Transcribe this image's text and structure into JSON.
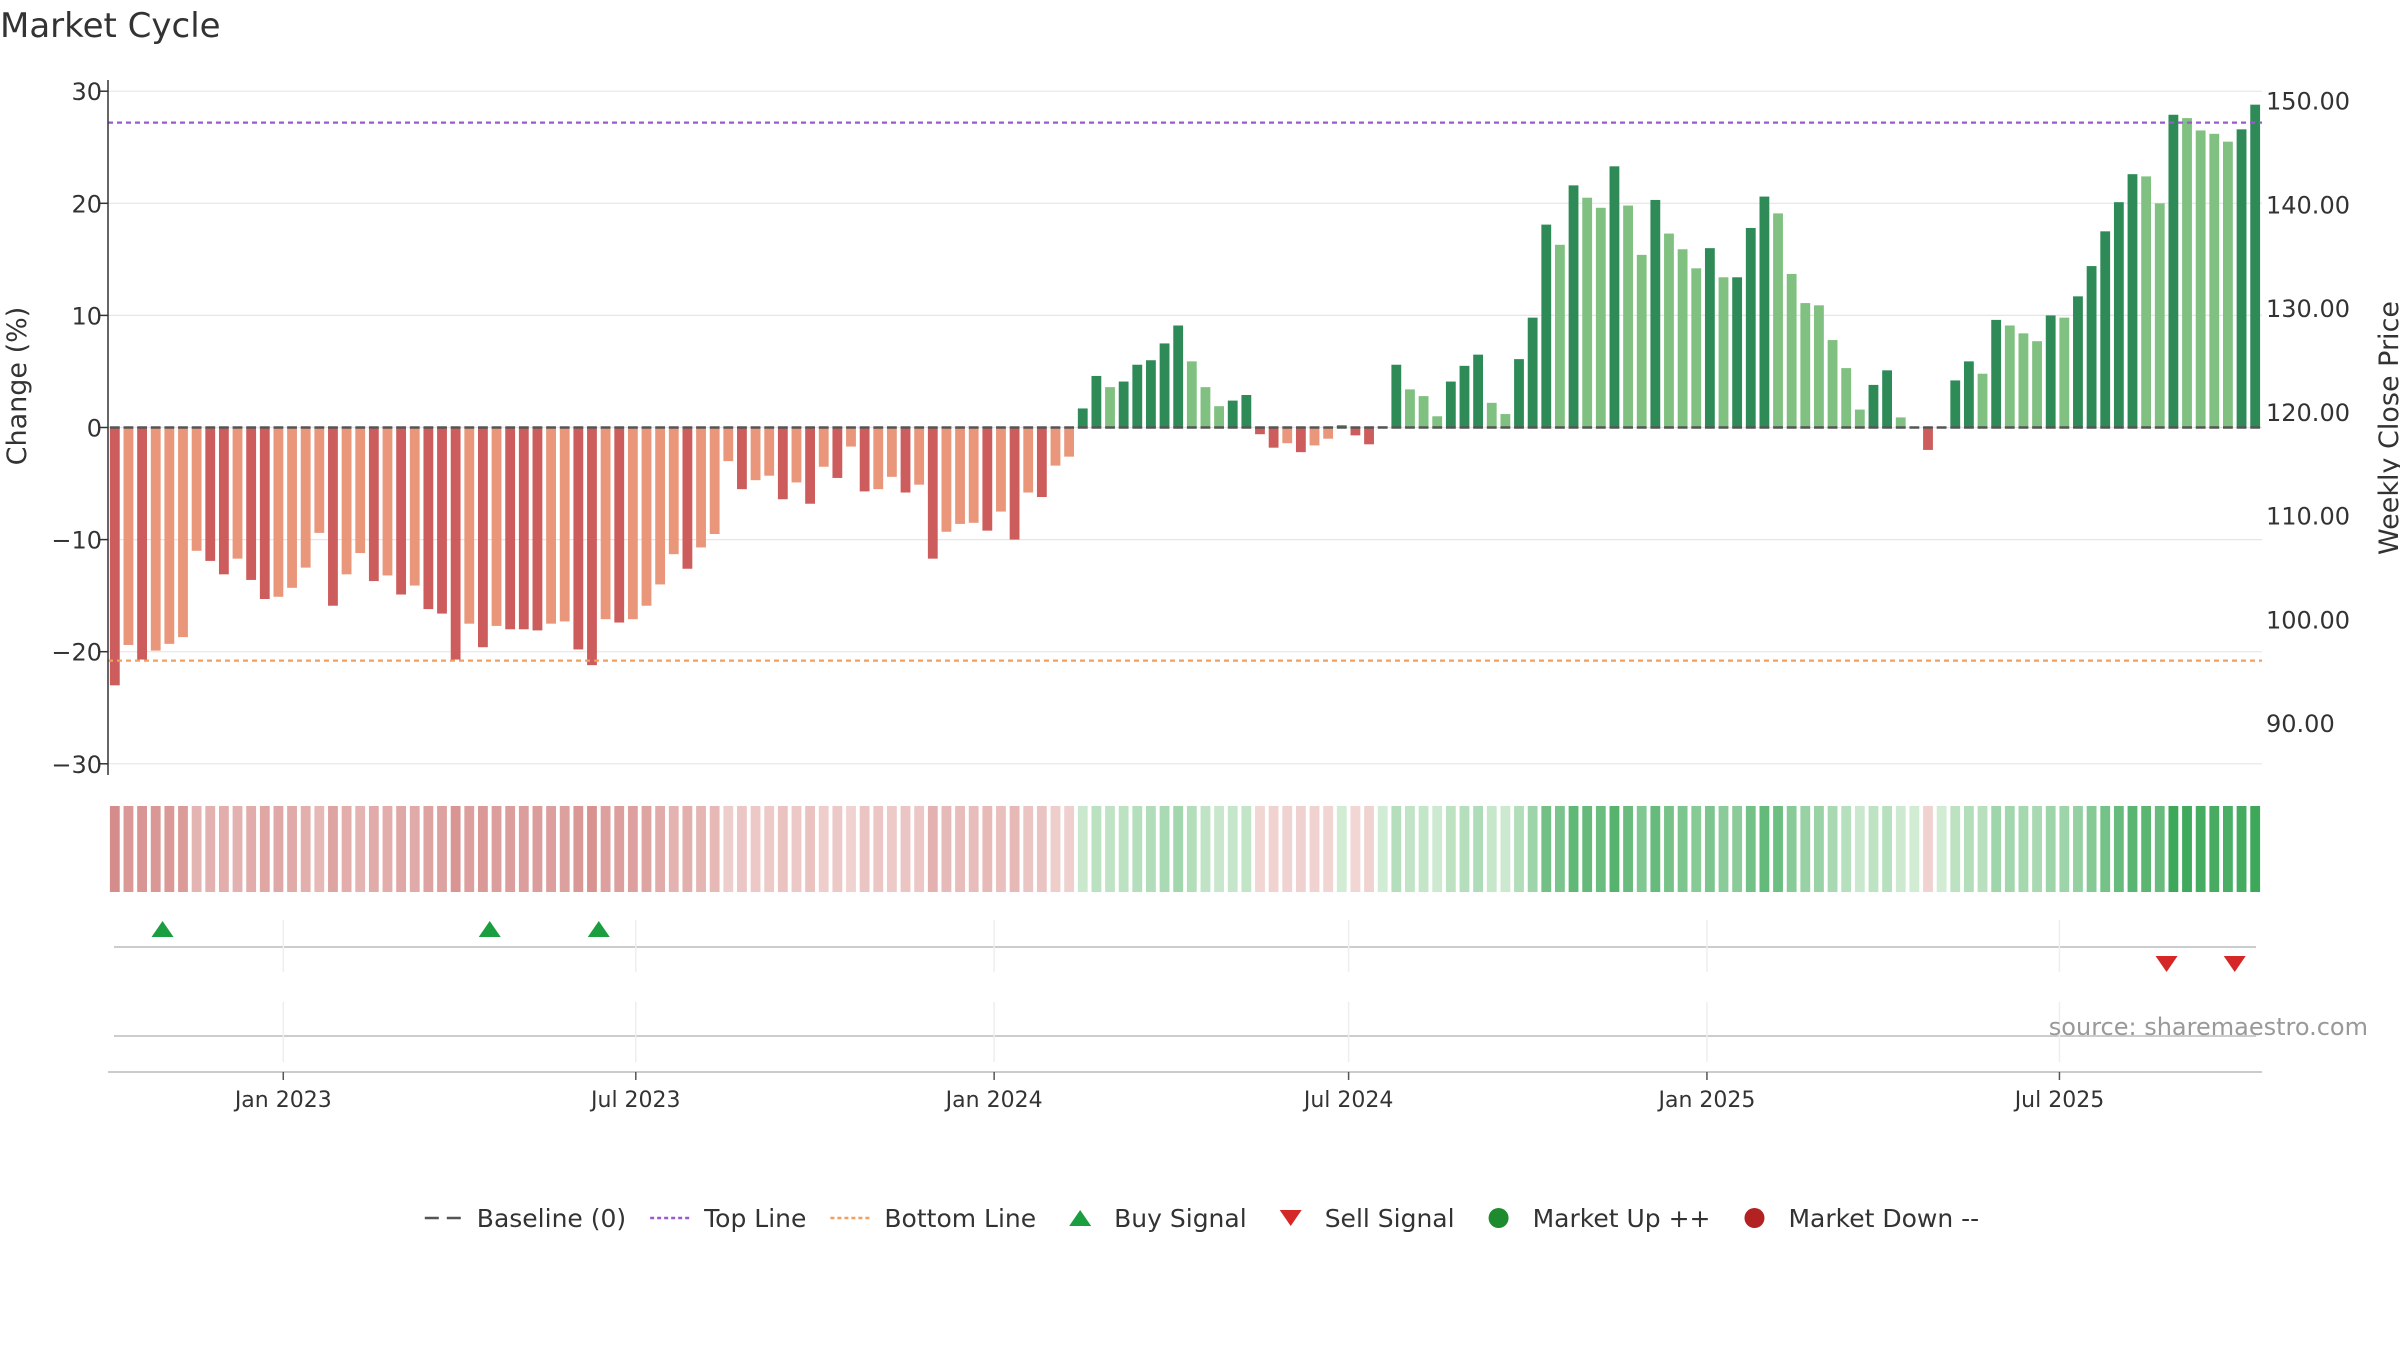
{
  "chart_data": {
    "type": "bar",
    "title": "Market Cycle",
    "ylabel": "Change (%)",
    "y2label": "Weekly Close Price",
    "ylim": [
      -31,
      31
    ],
    "y2lim": [
      85,
      152
    ],
    "yticks": [
      30,
      20,
      10,
      0,
      -10,
      -20,
      -30
    ],
    "ytick_labels": [
      "30",
      "20",
      "10",
      "0",
      "−10",
      "−20",
      "−30"
    ],
    "y2ticks": [
      150,
      140,
      130,
      120,
      110,
      100,
      90
    ],
    "y2tick_labels": [
      "150.00",
      "140.00",
      "130.00",
      "120.00",
      "110.00",
      "100.00",
      "90.00"
    ],
    "x_start": "2022-10-03",
    "x_end": "2025-10-13",
    "xticks": [
      "2023-01-01",
      "2023-07-01",
      "2024-01-01",
      "2024-07-01",
      "2025-01-01",
      "2025-07-01"
    ],
    "xtick_labels": [
      "Jan 2023",
      "Jul 2023",
      "Jan 2024",
      "Jul 2024",
      "Jan 2025",
      "Jul 2025"
    ],
    "top_line": 27.2,
    "bottom_line": -20.8,
    "baseline": 0,
    "values": [
      -23.0,
      -19.4,
      -20.7,
      -19.9,
      -19.3,
      -18.7,
      -11.0,
      -11.9,
      -13.1,
      -11.7,
      -13.6,
      -15.3,
      -15.1,
      -14.3,
      -12.5,
      -9.4,
      -15.9,
      -13.1,
      -11.2,
      -13.7,
      -13.2,
      -14.9,
      -14.1,
      -16.2,
      -16.6,
      -20.7,
      -17.5,
      -19.6,
      -17.7,
      -18.0,
      -18.0,
      -18.1,
      -17.5,
      -17.3,
      -19.8,
      -21.2,
      -17.1,
      -17.4,
      -17.1,
      -15.9,
      -14.0,
      -11.3,
      -12.6,
      -10.7,
      -9.5,
      -3.0,
      -5.5,
      -4.7,
      -4.3,
      -6.4,
      -4.9,
      -6.8,
      -3.5,
      -4.5,
      -1.7,
      -5.7,
      -5.5,
      -4.4,
      -5.8,
      -5.1,
      -11.7,
      -9.3,
      -8.6,
      -8.5,
      -9.2,
      -7.5,
      -10.0,
      -5.8,
      -6.2,
      -3.4,
      -2.6,
      1.7,
      4.6,
      3.6,
      4.1,
      5.6,
      6.0,
      7.5,
      9.1,
      5.9,
      3.6,
      1.9,
      2.4,
      2.9,
      -0.6,
      -1.8,
      -1.4,
      -2.2,
      -1.6,
      -1.0,
      0.2,
      -0.7,
      -1.5,
      0.1,
      5.6,
      3.4,
      2.8,
      1.0,
      4.1,
      5.5,
      6.5,
      2.2,
      1.2,
      6.1,
      9.8,
      18.1,
      16.3,
      21.6,
      20.5,
      19.6,
      23.3,
      19.8,
      15.4,
      20.3,
      17.3,
      15.9,
      14.2,
      16.0,
      13.4,
      13.4,
      17.8,
      20.6,
      19.1,
      13.7,
      11.1,
      10.9,
      7.8,
      5.3,
      1.6,
      3.8,
      5.1,
      0.9,
      0.0,
      -2.0,
      0.0,
      4.2,
      5.9,
      4.8,
      9.6,
      9.1,
      8.4,
      7.7,
      10.0,
      9.8,
      11.7,
      14.4,
      17.5,
      20.1,
      22.6,
      22.4,
      20.0,
      27.9,
      27.6,
      26.5,
      26.2,
      25.5,
      26.6,
      28.8
    ],
    "weekly_close_price": [],
    "buy_signals": [
      "2022-10-31",
      "2023-04-17",
      "2023-06-12"
    ],
    "sell_signals": [
      "2025-08-25",
      "2025-09-29"
    ],
    "market_up_events": [],
    "market_down_events": [],
    "colors": {
      "up_strong": "#2e8b57",
      "up_light": "#80c080",
      "down_strong": "#cd5c5c",
      "down_light": "#e9967a",
      "top_line": "#9b59d0",
      "bottom_line": "#f0a060",
      "baseline": "#555555",
      "buy": "#1a9e3f",
      "sell": "#d62728",
      "market_up": "#1e8c2e",
      "market_down": "#b22222",
      "grid": "#e6e6e6",
      "text": "#333333"
    },
    "legend_position": "bottom-center",
    "legend": [
      {
        "label": "Baseline (0)",
        "marker": "dash",
        "color": "#555555"
      },
      {
        "label": "Top Line",
        "marker": "dotted",
        "color": "#9b59d0"
      },
      {
        "label": "Bottom Line",
        "marker": "dotted",
        "color": "#f0a060"
      },
      {
        "label": "Buy Signal",
        "marker": "triangle-up",
        "color": "#1a9e3f"
      },
      {
        "label": "Sell Signal",
        "marker": "triangle-down",
        "color": "#d62728"
      },
      {
        "label": "Market Up ++",
        "marker": "circle",
        "color": "#1e8c2e"
      },
      {
        "label": "Market Down --",
        "marker": "circle",
        "color": "#b22222"
      }
    ],
    "source": "source: sharemaestro.com",
    "grid": true
  }
}
